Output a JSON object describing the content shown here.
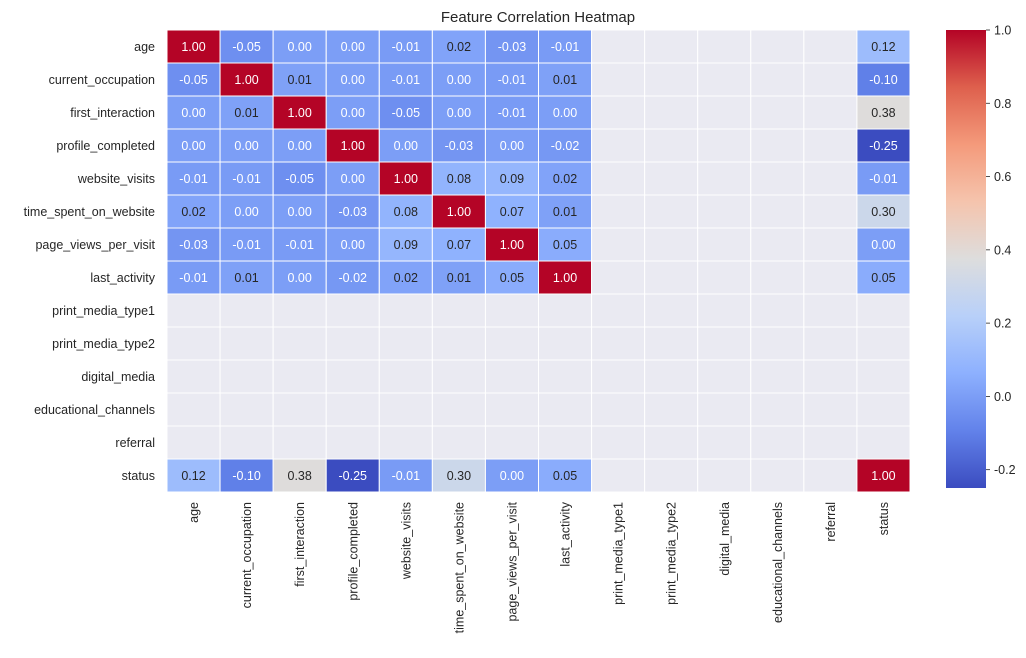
{
  "chart_data": {
    "type": "heatmap",
    "title": "Feature Correlation Heatmap",
    "xlabel": "",
    "ylabel": "",
    "rows": [
      "age",
      "current_occupation",
      "first_interaction",
      "profile_completed",
      "website_visits",
      "time_spent_on_website",
      "page_views_per_visit",
      "last_activity",
      "print_media_type1",
      "print_media_type2",
      "digital_media",
      "educational_channels",
      "referral",
      "status"
    ],
    "columns": [
      "age",
      "current_occupation",
      "first_interaction",
      "profile_completed",
      "website_visits",
      "time_spent_on_website",
      "page_views_per_visit",
      "last_activity",
      "print_media_type1",
      "print_media_type2",
      "digital_media",
      "educational_channels",
      "referral",
      "status"
    ],
    "values": [
      [
        1.0,
        -0.05,
        -0.0,
        -0.0,
        -0.01,
        0.02,
        -0.03,
        -0.01,
        null,
        null,
        null,
        null,
        null,
        0.12
      ],
      [
        -0.05,
        1.0,
        0.01,
        0.0,
        -0.01,
        -0.0,
        -0.01,
        0.01,
        null,
        null,
        null,
        null,
        null,
        -0.1
      ],
      [
        -0.0,
        0.01,
        1.0,
        -0.0,
        -0.05,
        0.0,
        -0.01,
        -0.0,
        null,
        null,
        null,
        null,
        null,
        0.38
      ],
      [
        -0.0,
        0.0,
        -0.0,
        1.0,
        0.0,
        -0.03,
        -0.0,
        -0.02,
        null,
        null,
        null,
        null,
        null,
        -0.25
      ],
      [
        -0.01,
        -0.01,
        -0.05,
        0.0,
        1.0,
        0.08,
        0.09,
        0.02,
        null,
        null,
        null,
        null,
        null,
        -0.01
      ],
      [
        0.02,
        -0.0,
        0.0,
        -0.03,
        0.08,
        1.0,
        0.07,
        0.01,
        null,
        null,
        null,
        null,
        null,
        0.3
      ],
      [
        -0.03,
        -0.01,
        -0.01,
        -0.0,
        0.09,
        0.07,
        1.0,
        0.05,
        null,
        null,
        null,
        null,
        null,
        0.0
      ],
      [
        -0.01,
        0.01,
        -0.0,
        -0.02,
        0.02,
        0.01,
        0.05,
        1.0,
        null,
        null,
        null,
        null,
        null,
        0.05
      ],
      [
        null,
        null,
        null,
        null,
        null,
        null,
        null,
        null,
        null,
        null,
        null,
        null,
        null,
        null
      ],
      [
        null,
        null,
        null,
        null,
        null,
        null,
        null,
        null,
        null,
        null,
        null,
        null,
        null,
        null
      ],
      [
        null,
        null,
        null,
        null,
        null,
        null,
        null,
        null,
        null,
        null,
        null,
        null,
        null,
        null
      ],
      [
        null,
        null,
        null,
        null,
        null,
        null,
        null,
        null,
        null,
        null,
        null,
        null,
        null,
        null
      ],
      [
        null,
        null,
        null,
        null,
        null,
        null,
        null,
        null,
        null,
        null,
        null,
        null,
        null,
        null
      ],
      [
        0.12,
        -0.1,
        0.38,
        -0.25,
        -0.01,
        0.3,
        0.0,
        0.05,
        null,
        null,
        null,
        null,
        null,
        1.0
      ]
    ],
    "value_format": "2 decimals",
    "colormap": "coolwarm",
    "color_range": [
      -0.25,
      1.0
    ],
    "colorbar_ticks": [
      "1.0",
      "0.8",
      "0.6",
      "0.4",
      "0.2",
      "0.0",
      "-0.2"
    ],
    "colorbar_tick_values": [
      1.0,
      0.8,
      0.6,
      0.4,
      0.2,
      0.0,
      -0.2
    ],
    "missing_color": "#eaeaf2",
    "grid": true,
    "colorbar": "right"
  }
}
